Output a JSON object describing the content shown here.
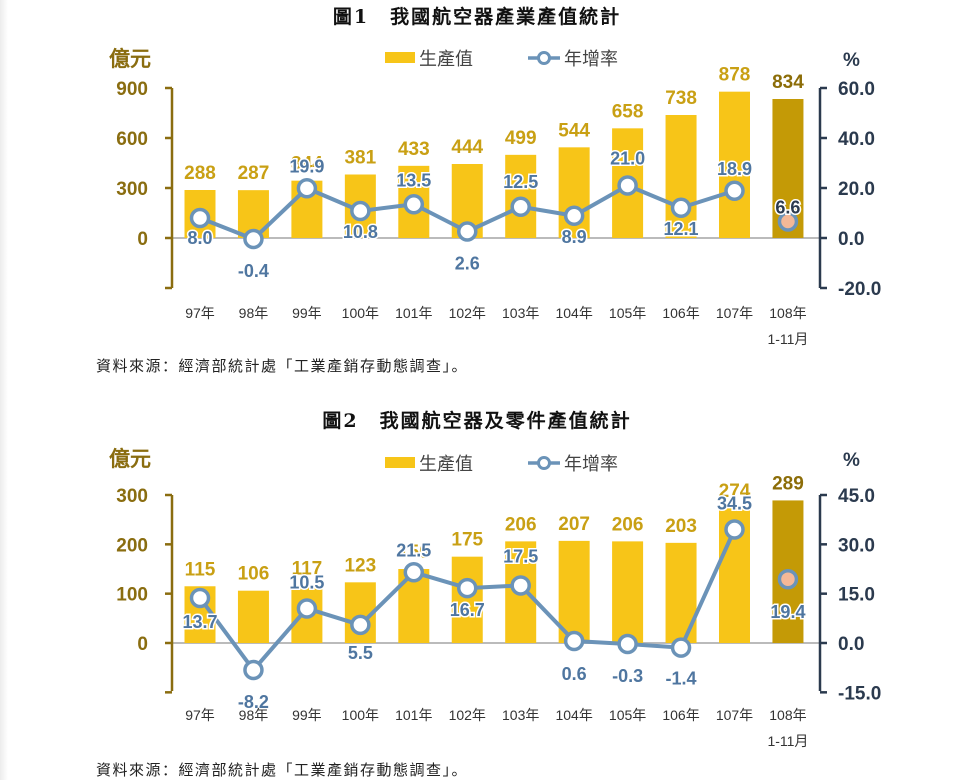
{
  "figures": [
    {
      "title": "圖1　我國航空器產業產值統計",
      "source": "資料來源：經濟部統計處「工業產銷存動態調查」。",
      "legend": {
        "bar": "生產值",
        "line": "年增率"
      },
      "left_unit": "億元",
      "right_unit": "%"
    },
    {
      "title": "圖2　我國航空器及零件產值統計",
      "source": "資料來源：經濟部統計處「工業產銷存動態調查」。",
      "legend": {
        "bar": "生產值",
        "line": "年增率"
      },
      "left_unit": "億元",
      "right_unit": "%"
    }
  ],
  "colors": {
    "bar": "#F7C518",
    "bar_highlight": "#C49A06",
    "line": "#6B93B8",
    "marker_fill": "#ffffff",
    "marker_highlight": "#F4B897",
    "left_axis": "#8A6D10",
    "left_label": "#8A6D10",
    "bar_label": "#C9A014",
    "bar_label_highlight": "#8C6D08",
    "right_axis": "#2B3A4E",
    "line_label": "#4F76A0",
    "zero_line": "#BBBBBB"
  },
  "chart_data": [
    {
      "type": "bar+line",
      "title": "圖1　我國航空器產業產值統計",
      "categories": [
        "97年",
        "98年",
        "99年",
        "100年",
        "101年",
        "102年",
        "103年",
        "104年",
        "105年",
        "106年",
        "107年",
        "108年\n1-11月"
      ],
      "series": [
        {
          "name": "生產值",
          "type": "bar",
          "axis": "left",
          "unit": "億元",
          "values": [
            288,
            287,
            344,
            381,
            433,
            444,
            499,
            544,
            658,
            738,
            878,
            834
          ]
        },
        {
          "name": "年增率",
          "type": "line",
          "axis": "right",
          "unit": "%",
          "values": [
            8.0,
            -0.4,
            19.9,
            10.8,
            13.5,
            2.6,
            12.5,
            8.9,
            21.0,
            12.1,
            18.9,
            6.6
          ]
        }
      ],
      "ylabel_left": "億元",
      "ylabel_right": "%",
      "left_ticks": [
        0,
        300,
        600,
        900
      ],
      "right_ticks": [
        "-20.0",
        "0.0",
        "20.0",
        "40.0",
        "60.0"
      ],
      "ylim_left": [
        -300,
        900
      ],
      "ylim_right": [
        -20,
        60
      ],
      "legend_position": "top",
      "grid": false
    },
    {
      "type": "bar+line",
      "title": "圖2　我國航空器及零件產值統計",
      "categories": [
        "97年",
        "98年",
        "99年",
        "100年",
        "101年",
        "102年",
        "103年",
        "104年",
        "105年",
        "106年",
        "107年",
        "108年\n1-11月"
      ],
      "series": [
        {
          "name": "生產值",
          "type": "bar",
          "axis": "left",
          "unit": "億元",
          "values": [
            115,
            106,
            117,
            123,
            150,
            175,
            206,
            207,
            206,
            203,
            274,
            289
          ]
        },
        {
          "name": "年增率",
          "type": "line",
          "axis": "right",
          "unit": "%",
          "values": [
            13.7,
            -8.2,
            10.5,
            5.5,
            21.5,
            16.7,
            17.5,
            0.6,
            -0.3,
            -1.4,
            34.5,
            19.4
          ]
        }
      ],
      "ylabel_left": "億元",
      "ylabel_right": "%",
      "left_ticks": [
        0,
        100,
        200,
        300
      ],
      "right_ticks": [
        "-15.0",
        "0.0",
        "15.0",
        "30.0",
        "45.0"
      ],
      "ylim_left": [
        -100,
        300
      ],
      "ylim_right": [
        -15,
        45
      ],
      "legend_position": "top",
      "grid": false
    }
  ]
}
